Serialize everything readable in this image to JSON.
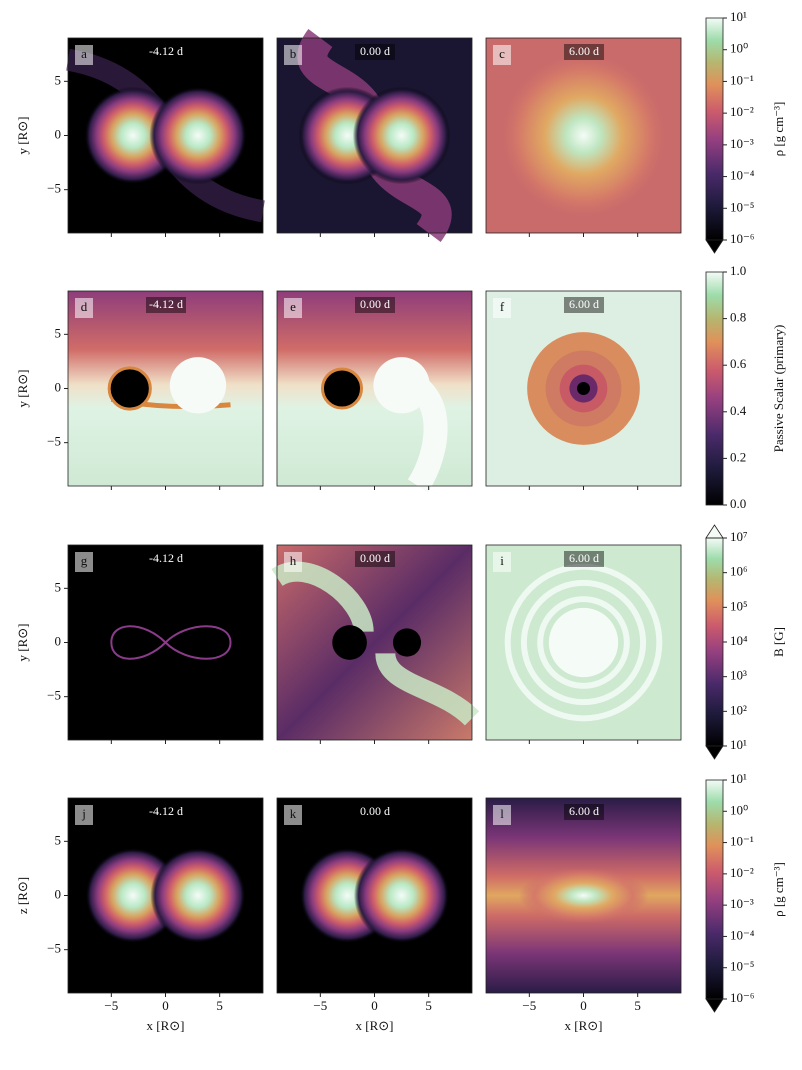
{
  "panels": [
    {
      "label": "a",
      "time": "-4.12 d"
    },
    {
      "label": "b",
      "time": "0.00 d"
    },
    {
      "label": "c",
      "time": "6.00 d"
    },
    {
      "label": "d",
      "time": "-4.12 d"
    },
    {
      "label": "e",
      "time": "0.00 d"
    },
    {
      "label": "f",
      "time": "6.00 d"
    },
    {
      "label": "g",
      "time": "-4.12 d"
    },
    {
      "label": "h",
      "time": "0.00 d"
    },
    {
      "label": "i",
      "time": "6.00 d"
    },
    {
      "label": "j",
      "time": "-4.12 d"
    },
    {
      "label": "k",
      "time": "0.00 d"
    },
    {
      "label": "l",
      "time": "6.00 d"
    }
  ],
  "xlabel": "x [R⊙]",
  "ylabels": [
    "y [R⊙]",
    "y [R⊙]",
    "y [R⊙]",
    "z [R⊙]"
  ],
  "xlim": [
    -9,
    9
  ],
  "ylim": [
    -9,
    9
  ],
  "xticks": [
    {
      "value": -5,
      "label": "−5"
    },
    0,
    5
  ],
  "yticks": [
    {
      "value": -5,
      "label": "−5"
    },
    0,
    5
  ],
  "colorbars": [
    {
      "label": "ρ [g cm⁻³]",
      "scale": "log",
      "lim": [
        1e-06,
        10
      ],
      "extend": "min",
      "ticks": [
        {
          "value": 1e-06,
          "label": "10⁻⁶"
        },
        {
          "value": 1e-05,
          "label": "10⁻⁵"
        },
        {
          "value": 0.0001,
          "label": "10⁻⁴"
        },
        {
          "value": 0.001,
          "label": "10⁻³"
        },
        {
          "value": 0.01,
          "label": "10⁻²"
        },
        {
          "value": 0.1,
          "label": "10⁻¹"
        },
        {
          "value": 1,
          "label": "10⁰"
        },
        {
          "value": 10,
          "label": "10¹"
        }
      ]
    },
    {
      "label": "Passive Scalar (primary)",
      "scale": "linear",
      "lim": [
        0,
        1
      ],
      "extend": "neither",
      "ticks": [
        {
          "value": 0,
          "label": "0.0"
        },
        0.2,
        0.4,
        0.6,
        0.8,
        {
          "value": 1,
          "label": "1.0"
        }
      ]
    },
    {
      "label": "B [G]",
      "scale": "log",
      "lim": [
        10,
        10000000.0
      ],
      "extend": "both",
      "ticks": [
        {
          "value": 10,
          "label": "10¹"
        },
        {
          "value": 100,
          "label": "10²"
        },
        {
          "value": 1000,
          "label": "10³"
        },
        {
          "value": 10000,
          "label": "10⁴"
        },
        {
          "value": 100000,
          "label": "10⁵"
        },
        {
          "value": 1000000,
          "label": "10⁶"
        },
        {
          "value": 10000000,
          "label": "10⁷"
        }
      ]
    },
    {
      "label": "ρ [g cm⁻³]",
      "scale": "log",
      "lim": [
        1e-06,
        10
      ],
      "extend": "min",
      "ticks": [
        {
          "value": 1e-06,
          "label": "10⁻⁶"
        },
        {
          "value": 1e-05,
          "label": "10⁻⁵"
        },
        {
          "value": 0.0001,
          "label": "10⁻⁴"
        },
        {
          "value": 0.001,
          "label": "10⁻³"
        },
        {
          "value": 0.01,
          "label": "10⁻²"
        },
        {
          "value": 0.1,
          "label": "10⁻¹"
        },
        {
          "value": 1,
          "label": "10⁰"
        },
        {
          "value": 10,
          "label": "10¹"
        }
      ]
    }
  ]
}
